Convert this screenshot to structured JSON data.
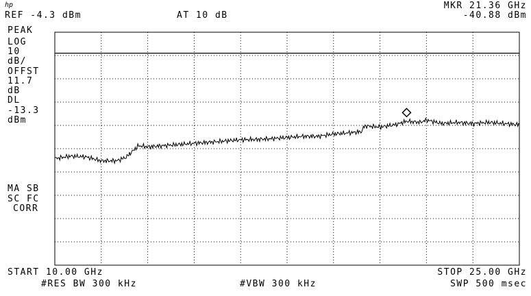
{
  "header": {
    "logo": "hp",
    "ref": "REF -4.3 dBm",
    "attenuation": "AT 10 dB",
    "marker_label": "MKR 21.36 GHz",
    "marker_value": "-40.88 dBm"
  },
  "left_panel": {
    "detector": "PEAK",
    "scale_type": "LOG",
    "scale_value": "10",
    "scale_unit": "dB/",
    "offset_label": "OFFST",
    "offset_value": "11.7",
    "offset_unit": "dB",
    "display_line_label": "DL",
    "display_line_value": "-13.3",
    "display_line_unit": "dBm",
    "annotation_1": "MA SB",
    "annotation_2": "SC FC",
    "annotation_3": "CORR"
  },
  "footer": {
    "start": "START 10.00 GHz",
    "stop": "STOP 25.00 GHz",
    "res_bw": "#RES BW 300 kHz",
    "vbw": "#VBW 300 kHz",
    "sweep": "SWP 500 msec"
  },
  "chart_data": {
    "type": "line",
    "title": "",
    "xlabel": "",
    "ylabel": "",
    "x_unit": "GHz",
    "y_unit": "dBm",
    "xlim": [
      10.0,
      25.0
    ],
    "ylim": [
      -104.3,
      -4.3
    ],
    "x_divisions": 10,
    "y_divisions": 10,
    "grid": true,
    "display_line_dbm": -13.3,
    "marker": {
      "x": 21.36,
      "y": -40.88
    },
    "series": [
      {
        "x": [
          10.0,
          10.5,
          11.0,
          11.5,
          12.0,
          12.3,
          12.7,
          13.0,
          13.5,
          14.0,
          14.5,
          15.0,
          15.5,
          16.0,
          16.5,
          17.0,
          17.5,
          18.0,
          18.5,
          19.0,
          19.5,
          19.9,
          20.0,
          20.5,
          21.0,
          21.36,
          21.8,
          22.0,
          22.5,
          23.0,
          23.5,
          24.0,
          24.5,
          25.0
        ],
        "values": [
          -58.5,
          -57.5,
          -57.8,
          -59.5,
          -59.5,
          -58.0,
          -53.0,
          -53.5,
          -53.0,
          -52.5,
          -52.0,
          -51.5,
          -51.0,
          -50.5,
          -50.3,
          -50.0,
          -49.5,
          -49.0,
          -49.0,
          -48.0,
          -47.5,
          -47.0,
          -44.5,
          -45.0,
          -44.0,
          -42.5,
          -43.0,
          -42.0,
          -43.5,
          -43.0,
          -43.5,
          -43.0,
          -43.5,
          -44.0
        ]
      }
    ]
  }
}
